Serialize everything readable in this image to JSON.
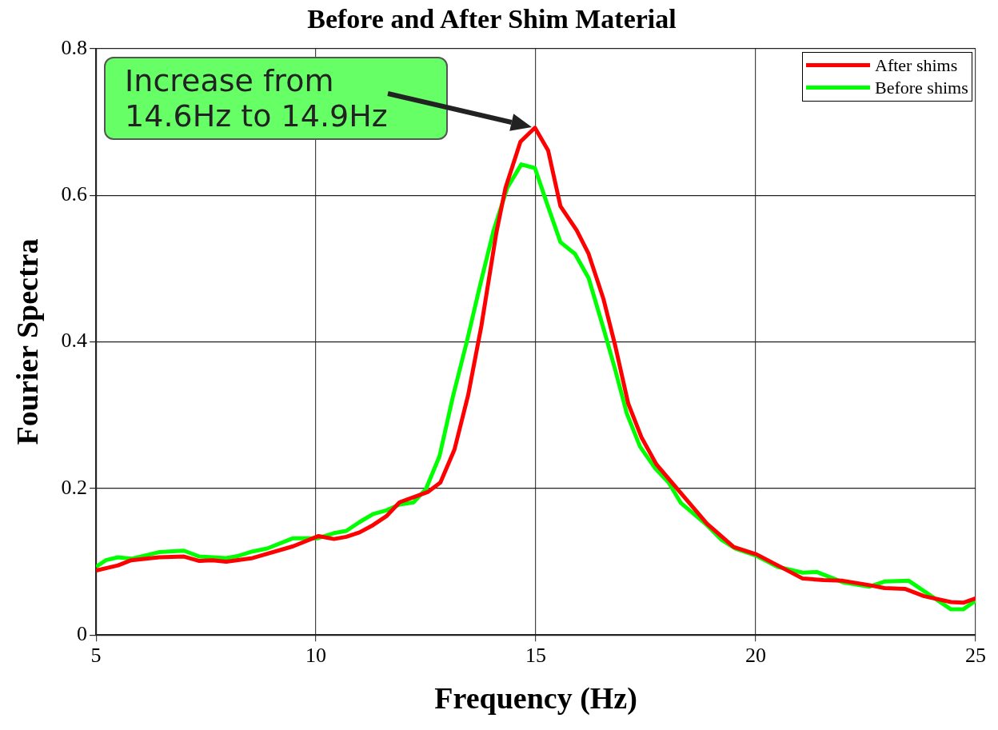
{
  "chart_data": {
    "type": "line",
    "title": "Before and After Shim Material",
    "xlabel": "Frequency (Hz)",
    "ylabel": "Fourier Spectra",
    "annotations": [
      "Increase from 14.6Hz to 14.9Hz"
    ],
    "series": [
      {
        "name": "After shims",
        "color": "#ff0000",
        "x": [
          5,
          5.5,
          5.8,
          6.43,
          7.0,
          7.35,
          7.65,
          7.96,
          8.56,
          9.48,
          10.06,
          10.41,
          10.69,
          10.99,
          11.3,
          11.6,
          11.9,
          12.22,
          12.54,
          12.83,
          13.15,
          13.46,
          13.76,
          14.1,
          14.31,
          14.65,
          14.98,
          15.28,
          15.56,
          15.93,
          16.2,
          16.54,
          16.8,
          17.1,
          17.4,
          17.74,
          18.15,
          18.89,
          19.5,
          20.02,
          20.5,
          21.07,
          21.54,
          21.98,
          22.59,
          22.93,
          23.39,
          23.83,
          24.44,
          24.72,
          25
        ],
        "values": [
          0.088,
          0.095,
          0.102,
          0.106,
          0.107,
          0.101,
          0.102,
          0.1,
          0.105,
          0.121,
          0.135,
          0.131,
          0.134,
          0.14,
          0.15,
          0.162,
          0.181,
          0.188,
          0.195,
          0.208,
          0.253,
          0.327,
          0.421,
          0.548,
          0.61,
          0.673,
          0.692,
          0.661,
          0.585,
          0.552,
          0.52,
          0.458,
          0.396,
          0.316,
          0.27,
          0.233,
          0.204,
          0.152,
          0.12,
          0.11,
          0.095,
          0.077,
          0.075,
          0.074,
          0.068,
          0.064,
          0.063,
          0.053,
          0.045,
          0.044,
          0.05
        ]
      },
      {
        "name": "Before shims",
        "color": "#00ff00",
        "x": [
          5,
          5.22,
          5.5,
          5.8,
          6.43,
          7.0,
          7.35,
          7.96,
          8.24,
          8.56,
          8.89,
          9.48,
          10.04,
          10.41,
          10.69,
          10.99,
          11.3,
          11.6,
          11.9,
          12.22,
          12.5,
          12.81,
          13.11,
          13.43,
          13.74,
          14.04,
          14.35,
          14.67,
          14.98,
          15.24,
          15.56,
          15.89,
          16.2,
          16.54,
          16.8,
          17.07,
          17.37,
          17.72,
          18.02,
          18.3,
          18.89,
          19.22,
          19.54,
          20.02,
          20.5,
          21.07,
          21.39,
          21.98,
          22.59,
          22.93,
          23.48,
          24.44,
          24.72,
          25
        ],
        "values": [
          0.093,
          0.102,
          0.106,
          0.104,
          0.113,
          0.115,
          0.107,
          0.105,
          0.108,
          0.114,
          0.118,
          0.132,
          0.132,
          0.139,
          0.142,
          0.154,
          0.165,
          0.17,
          0.178,
          0.181,
          0.199,
          0.244,
          0.324,
          0.4,
          0.479,
          0.552,
          0.61,
          0.642,
          0.637,
          0.591,
          0.536,
          0.52,
          0.487,
          0.418,
          0.363,
          0.302,
          0.257,
          0.227,
          0.208,
          0.18,
          0.15,
          0.13,
          0.118,
          0.108,
          0.093,
          0.085,
          0.086,
          0.072,
          0.066,
          0.073,
          0.074,
          0.035,
          0.035,
          0.047
        ]
      }
    ],
    "xlim": [
      5,
      25
    ],
    "xticks": [
      5,
      10,
      15,
      20,
      25
    ],
    "ylim": [
      0,
      0.8
    ],
    "yticks": [
      0,
      0.2,
      0.4,
      0.6,
      0.8
    ],
    "grid": true,
    "legend": "top right",
    "marker": "none",
    "line_style": "solid"
  }
}
